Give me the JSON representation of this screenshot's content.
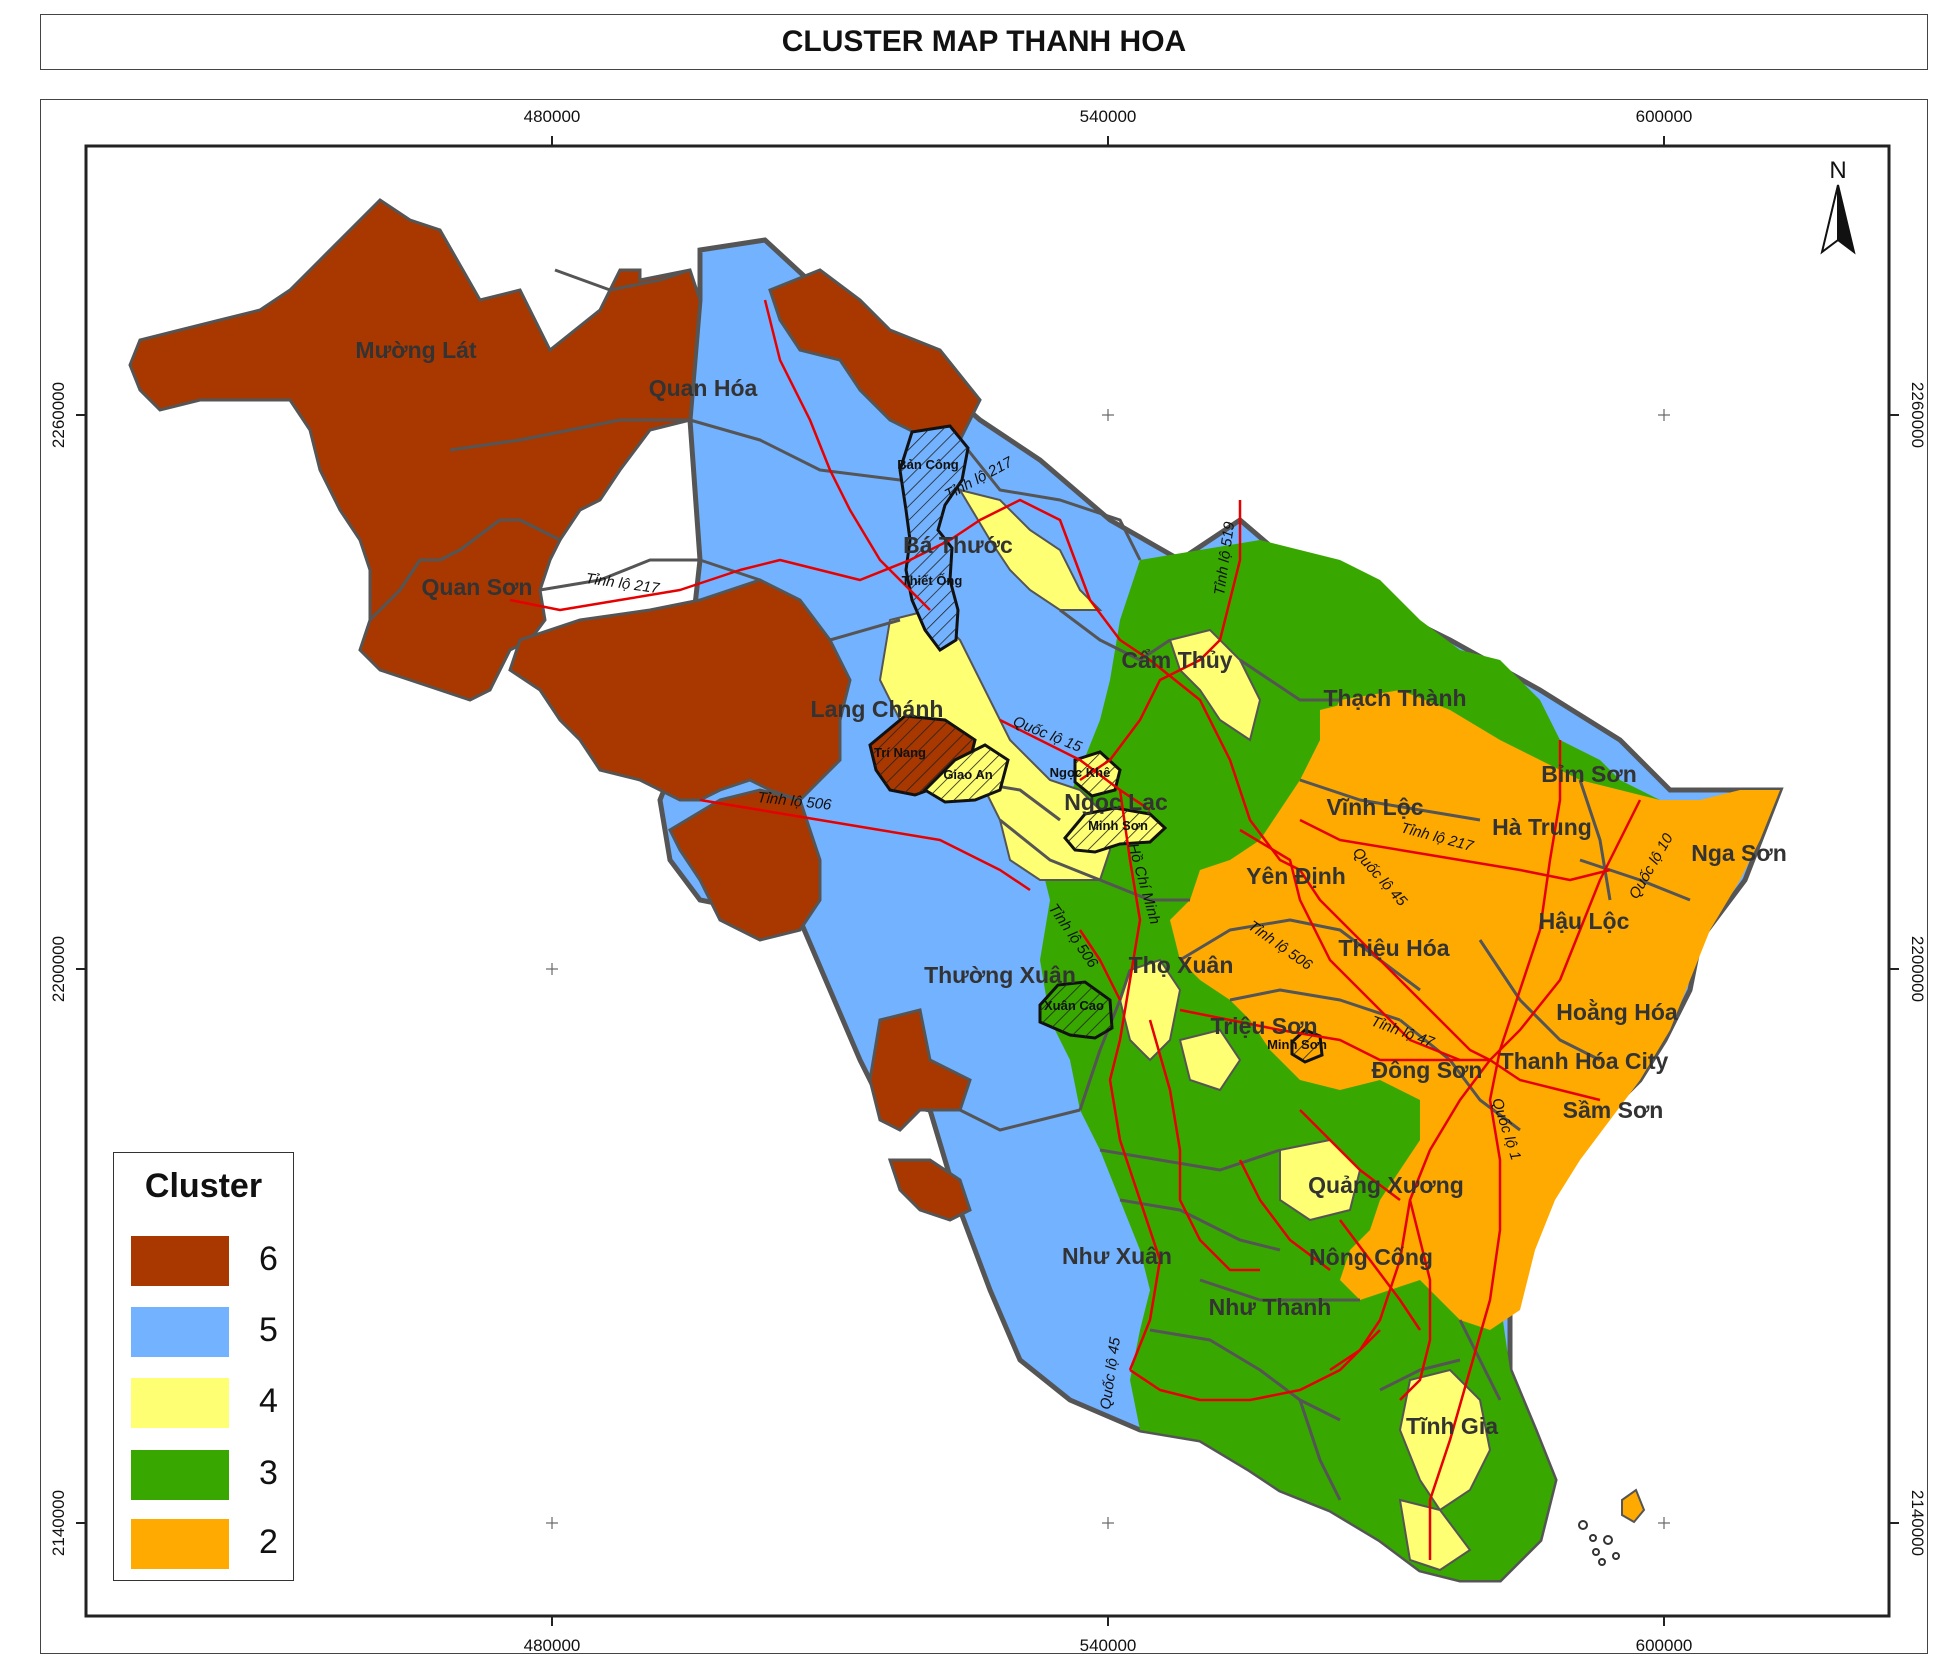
{
  "title": "CLUSTER MAP THANH HOA",
  "axes": {
    "x_ticks": [
      "480000",
      "540000",
      "600000"
    ],
    "y_ticks": [
      "2260000",
      "2200000",
      "2140000"
    ]
  },
  "north_label": "N",
  "colors": {
    "cluster_6": "#a83800",
    "cluster_5": "#73b2ff",
    "cluster_4": "#ffff73",
    "cluster_3": "#38a800",
    "cluster_2": "#ffaa00",
    "road": "#e60000",
    "boundary": "#555555"
  },
  "legend": {
    "title": "Cluster",
    "items": [
      {
        "label": "6",
        "color": "#a83800"
      },
      {
        "label": "5",
        "color": "#73b2ff"
      },
      {
        "label": "4",
        "color": "#ffff73"
      },
      {
        "label": "3",
        "color": "#38a800"
      },
      {
        "label": "2",
        "color": "#ffaa00"
      }
    ]
  },
  "districts": {
    "muong_lat": "Mường Lát",
    "quan_hoa": "Quan Hóa",
    "ba_thuoc": "Bá Thước",
    "quan_son": "Quan Sơn",
    "lang_chanh": "Lang Chánh",
    "ngoc_lac": "Ngọc Lạc",
    "cam_thuy": "Cẩm Thủy",
    "thach_thanh": "Thạch Thành",
    "vinh_loc": "Vĩnh Lộc",
    "bim_son": "Bỉm Sơn",
    "ha_trung": "Hà Trung",
    "nga_son": "Nga Sơn",
    "yen_dinh": "Yên Định",
    "hau_loc": "Hậu Lộc",
    "thieu_hoa": "Thiệu Hóa",
    "tho_xuan": "Thọ Xuân",
    "thuong_xuan": "Thường Xuân",
    "trieu_son": "Triệu Sơn",
    "hoang_hoa": "Hoằng Hóa",
    "dong_son": "Đông Sơn",
    "thanh_hoa_city": "Thanh Hóa City",
    "sam_son": "Sầm Sơn",
    "quang_xuong": "Quảng Xương",
    "nong_cong": "Nông Cống",
    "nhu_xuan": "Như Xuân",
    "nhu_thanh": "Như Thanh",
    "tinh_gia": "Tĩnh Gia"
  },
  "communes": {
    "ban_cong": "Bản Công",
    "thiet_ong": "Thiết Ống",
    "tri_nang": "Trí Nang",
    "giao_an": "Giao An",
    "ngoc_khe": "Ngọc Khê",
    "minh_son_1": "Minh Sơn",
    "xuan_cao": "Xuân Cao",
    "minh_son_2": "Minh Sơn"
  },
  "roads": {
    "tl217_a": "Tỉnh lộ 217",
    "tl217_b": "Tỉnh lộ 217",
    "tl217_c": "Tỉnh lộ 217",
    "tl519": "Tỉnh lộ 519",
    "ql15": "Quốc lộ 15",
    "tl506_a": "Tỉnh lộ 506",
    "tl506_b": "Tỉnh lộ 506",
    "tl506_c": "Tỉnh lộ 506",
    "ho_chi_minh": "Hồ Chí Minh",
    "ql45_a": "Quốc lộ 45",
    "ql45_b": "Quốc lộ 45",
    "ql10": "Quốc lộ 10",
    "tl47": "Tỉnh lộ 47",
    "ql1": "Quốc lộ 1"
  }
}
